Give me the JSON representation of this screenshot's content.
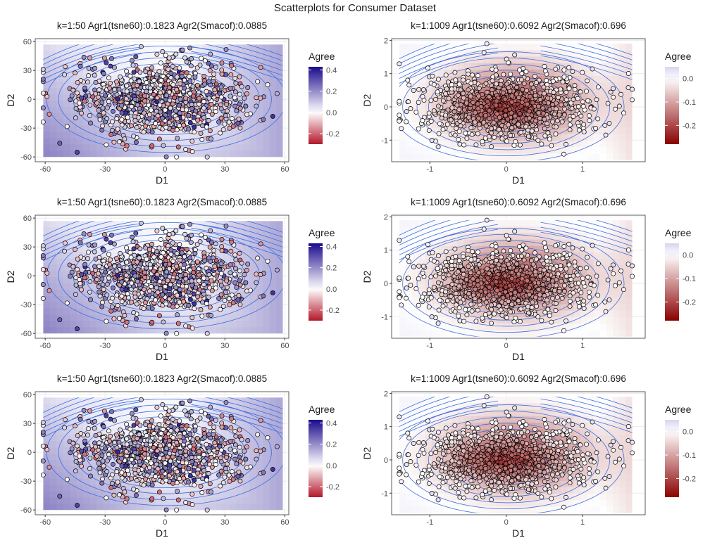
{
  "figure": {
    "title": "Scatterplots for Consumer Dataset"
  },
  "chart_data": [
    {
      "type": "scatter",
      "title": "k=1:50 Agr1(tsne60):0.1823 Agr2(Smacof):0.0885",
      "xlabel": "D1",
      "ylabel": "D2",
      "xlim": [
        -65,
        62
      ],
      "ylim": [
        -65,
        63
      ],
      "xticks": [
        -60,
        -30,
        0,
        30,
        60
      ],
      "xtick_labels": [
        "-60",
        "-30",
        "0",
        "30",
        "60"
      ],
      "yticks": [
        -60,
        -30,
        0,
        30,
        60
      ],
      "ytick_labels": [
        "-60",
        "-30",
        "0",
        "30",
        "60"
      ],
      "data_region": {
        "x": [
          -61,
          59
        ],
        "y": [
          -60,
          57
        ]
      },
      "point_count": 1009,
      "point_spread": {
        "x_center": 0,
        "y_center": 0,
        "x_sd": 22,
        "y_sd": 20
      },
      "legend": {
        "title": "Agree",
        "ticks": [
          0.4,
          0.2,
          0.0,
          -0.2
        ],
        "tick_labels": [
          "0.4",
          "0.2",
          "0.0",
          "-0.2"
        ],
        "range": [
          -0.3,
          0.43
        ]
      },
      "colorscale": {
        "low": "#b2182b",
        "mid": "#ffffff",
        "high": "#1a0a8c",
        "scheme": "purple-high"
      },
      "background_trend": "higher agreement (purple) toward the lower-left and right edges",
      "grid": true
    },
    {
      "type": "scatter",
      "title": "k=1:1009 Agr1(tsne60):0.6092 Agr2(Smacof):0.696",
      "xlabel": "D1",
      "ylabel": "D2",
      "xlim": [
        -1.5,
        1.82
      ],
      "ylim": [
        -1.65,
        2.05
      ],
      "xticks": [
        -1,
        0,
        1
      ],
      "xtick_labels": [
        "-1",
        "0",
        "1"
      ],
      "yticks": [
        -1,
        0,
        1,
        2
      ],
      "ytick_labels": [
        "-1",
        "0",
        "1",
        "2"
      ],
      "data_region": {
        "x": [
          -1.4,
          1.65
        ],
        "y": [
          -1.6,
          1.9
        ]
      },
      "point_count": 1009,
      "point_spread": {
        "x_center": 0,
        "y_center": 0,
        "x_sd": 0.55,
        "y_sd": 0.5
      },
      "legend": {
        "title": "Agree",
        "ticks": [
          0.0,
          -0.1,
          -0.2
        ],
        "tick_labels": [
          "0.0",
          "-0.1",
          "-0.2"
        ],
        "range": [
          -0.28,
          0.05
        ]
      },
      "colorscale": {
        "low": "#8b0000",
        "mid": "#ffffff",
        "high": "#d8d4f0",
        "scheme": "red-low"
      },
      "background_trend": "lowest agreement (dark red) at the dense centre, near white at the edges",
      "grid": true
    },
    {
      "type": "scatter",
      "title": "k=1:50 Agr1(tsne60):0.1823 Agr2(Smacof):0.0885",
      "xlabel": "D1",
      "ylabel": "D2",
      "xlim": [
        -65,
        62
      ],
      "ylim": [
        -65,
        63
      ],
      "xticks": [
        -60,
        -30,
        0,
        30,
        60
      ],
      "xtick_labels": [
        "-60",
        "-30",
        "0",
        "30",
        "60"
      ],
      "yticks": [
        -60,
        -30,
        0,
        30,
        60
      ],
      "ytick_labels": [
        "-60",
        "-30",
        "0",
        "30",
        "60"
      ],
      "data_region": {
        "x": [
          -61,
          59
        ],
        "y": [
          -60,
          57
        ]
      },
      "point_count": 1009,
      "point_spread": {
        "x_center": 0,
        "y_center": 0,
        "x_sd": 22,
        "y_sd": 20
      },
      "legend": {
        "title": "Agree",
        "ticks": [
          0.4,
          0.2,
          0.0,
          -0.2
        ],
        "tick_labels": [
          "0.4",
          "0.2",
          "0.0",
          "-0.2"
        ],
        "range": [
          -0.3,
          0.43
        ]
      },
      "colorscale": {
        "low": "#b2182b",
        "mid": "#ffffff",
        "high": "#1a0a8c",
        "scheme": "purple-high"
      },
      "background_trend": "higher agreement (purple) toward the lower-left and right edges",
      "grid": true
    },
    {
      "type": "scatter",
      "title": "k=1:1009 Agr1(tsne60):0.6092 Agr2(Smacof):0.696",
      "xlabel": "D1",
      "ylabel": "D2",
      "xlim": [
        -1.5,
        1.82
      ],
      "ylim": [
        -1.65,
        2.05
      ],
      "xticks": [
        -1,
        0,
        1
      ],
      "xtick_labels": [
        "-1",
        "0",
        "1"
      ],
      "yticks": [
        -1,
        0,
        1,
        2
      ],
      "ytick_labels": [
        "-1",
        "0",
        "1",
        "2"
      ],
      "data_region": {
        "x": [
          -1.4,
          1.65
        ],
        "y": [
          -1.6,
          1.9
        ]
      },
      "point_count": 1009,
      "point_spread": {
        "x_center": 0,
        "y_center": 0,
        "x_sd": 0.55,
        "y_sd": 0.5
      },
      "legend": {
        "title": "Agree",
        "ticks": [
          0.0,
          -0.1,
          -0.2
        ],
        "tick_labels": [
          "0.0",
          "-0.1",
          "-0.2"
        ],
        "range": [
          -0.28,
          0.05
        ]
      },
      "colorscale": {
        "low": "#8b0000",
        "mid": "#ffffff",
        "high": "#d8d4f0",
        "scheme": "red-low"
      },
      "background_trend": "lowest agreement (dark red) at the dense centre, near white at the edges",
      "grid": true
    },
    {
      "type": "scatter",
      "title": "k=1:50 Agr1(tsne60):0.1823 Agr2(Smacof):0.0885",
      "xlabel": "D1",
      "ylabel": "D2",
      "xlim": [
        -65,
        62
      ],
      "ylim": [
        -65,
        63
      ],
      "xticks": [
        -60,
        -30,
        0,
        30,
        60
      ],
      "xtick_labels": [
        "-60",
        "-30",
        "0",
        "30",
        "60"
      ],
      "yticks": [
        -60,
        -30,
        0,
        30,
        60
      ],
      "ytick_labels": [
        "-60",
        "-30",
        "0",
        "30",
        "60"
      ],
      "data_region": {
        "x": [
          -61,
          59
        ],
        "y": [
          -60,
          57
        ]
      },
      "point_count": 1009,
      "point_spread": {
        "x_center": 0,
        "y_center": 0,
        "x_sd": 22,
        "y_sd": 20
      },
      "legend": {
        "title": "Agree",
        "ticks": [
          0.4,
          0.2,
          0.0,
          -0.2
        ],
        "tick_labels": [
          "0.4",
          "0.2",
          "0.0",
          "-0.2"
        ],
        "range": [
          -0.3,
          0.43
        ]
      },
      "colorscale": {
        "low": "#b2182b",
        "mid": "#ffffff",
        "high": "#1a0a8c",
        "scheme": "purple-high"
      },
      "background_trend": "higher agreement (purple) toward the lower-left and right edges",
      "grid": true
    },
    {
      "type": "scatter",
      "title": "k=1:1009 Agr1(tsne60):0.6092 Agr2(Smacof):0.696",
      "xlabel": "D1",
      "ylabel": "D2",
      "xlim": [
        -1.5,
        1.82
      ],
      "ylim": [
        -1.65,
        2.05
      ],
      "xticks": [
        -1,
        0,
        1
      ],
      "xtick_labels": [
        "-1",
        "0",
        "1"
      ],
      "yticks": [
        -1,
        0,
        1,
        2
      ],
      "ytick_labels": [
        "-1",
        "0",
        "1",
        "2"
      ],
      "data_region": {
        "x": [
          -1.4,
          1.65
        ],
        "y": [
          -1.6,
          1.9
        ]
      },
      "point_count": 1009,
      "point_spread": {
        "x_center": 0,
        "y_center": 0,
        "x_sd": 0.55,
        "y_sd": 0.5
      },
      "legend": {
        "title": "Agree",
        "ticks": [
          0.0,
          -0.1,
          -0.2
        ],
        "tick_labels": [
          "0.0",
          "-0.1",
          "-0.2"
        ],
        "range": [
          -0.28,
          0.05
        ]
      },
      "colorscale": {
        "low": "#8b0000",
        "mid": "#ffffff",
        "high": "#d8d4f0",
        "scheme": "red-low"
      },
      "background_trend": "lowest agreement (dark red) at the dense centre, near white at the edges",
      "grid": true
    }
  ],
  "style": {
    "contour_color": "#3d6fe0",
    "grid_color": "#ebebeb",
    "axis_color": "#333333",
    "point_stroke": "#000000"
  }
}
